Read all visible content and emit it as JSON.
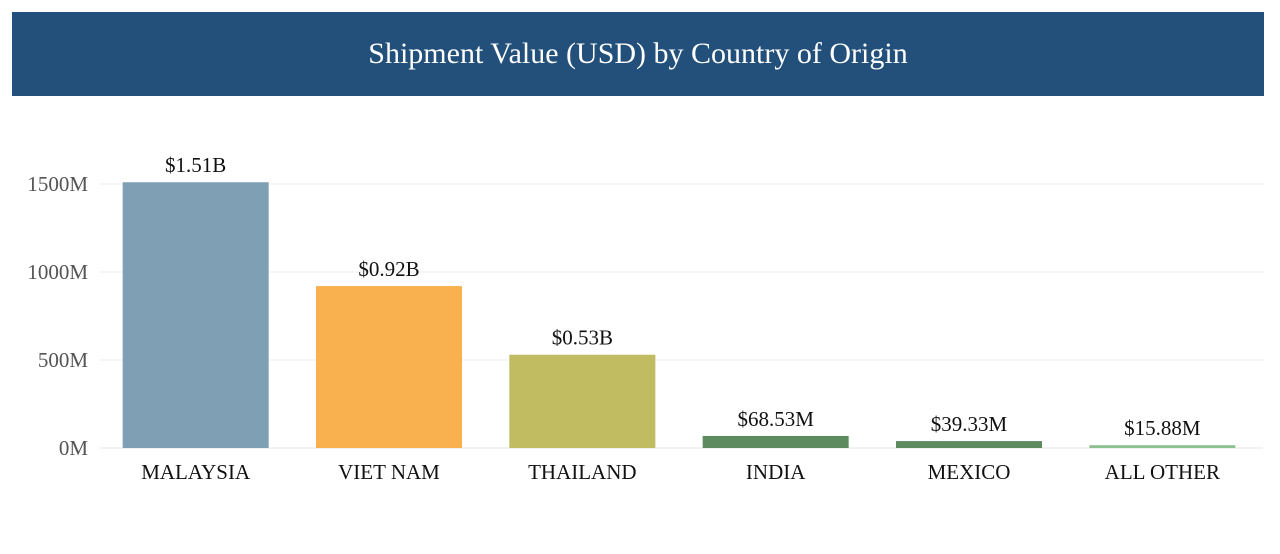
{
  "header": {
    "title": "Shipment Value (USD) by Country of Origin",
    "background_color": "#22507a"
  },
  "chart_data": {
    "type": "bar",
    "title": "Shipment Value (USD) by Country of Origin",
    "xlabel": "",
    "ylabel": "",
    "ylim": [
      0,
      1560
    ],
    "yunit": "M",
    "grid": true,
    "yticks": [
      {
        "value": 0,
        "label": "0M"
      },
      {
        "value": 500,
        "label": "500M"
      },
      {
        "value": 1000,
        "label": "1000M"
      },
      {
        "value": 1500,
        "label": "1500M"
      }
    ],
    "categories": [
      "MALAYSIA",
      "VIET NAM",
      "THAILAND",
      "INDIA",
      "MEXICO",
      "ALL OTHER"
    ],
    "values": [
      1510,
      920,
      530,
      68.53,
      39.33,
      15.88
    ],
    "data_labels": [
      "$1.51B",
      "$0.92B",
      "$0.53B",
      "$68.53M",
      "$39.33M",
      "$15.88M"
    ],
    "colors": [
      "#7f9fb4",
      "#f9b04e",
      "#c1bc62",
      "#5e8a60",
      "#5e8a60",
      "#8cc08e"
    ]
  }
}
